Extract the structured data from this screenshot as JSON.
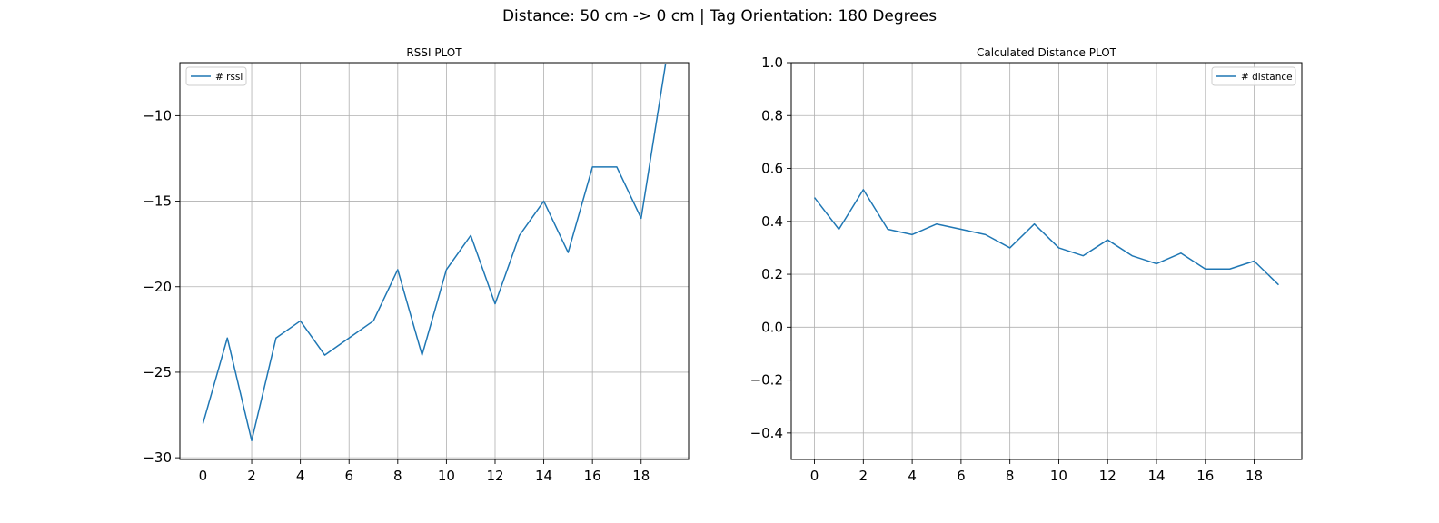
{
  "figure": {
    "suptitle": "Distance: 50 cm -> 0 cm | Tag Orientation: 180 Degrees",
    "line_color": "#1f77b4",
    "grid_color": "#b0b0b0"
  },
  "chart_data": [
    {
      "type": "line",
      "title": "RSSI PLOT",
      "xlabel": "",
      "ylabel": "",
      "grid": true,
      "legend_position": "upper left",
      "xlim": [
        -0.95,
        19.95
      ],
      "ylim": [
        -30.1,
        -6.9
      ],
      "xticks": [
        0,
        2,
        4,
        6,
        8,
        10,
        12,
        14,
        16,
        18
      ],
      "yticks": [
        -30,
        -25,
        -20,
        -15,
        -10
      ],
      "ytick_labels": [
        "−30",
        "−25",
        "−20",
        "−15",
        "−10"
      ],
      "series": [
        {
          "name": "# rssi",
          "x": [
            0,
            1,
            2,
            3,
            4,
            5,
            6,
            7,
            8,
            9,
            10,
            11,
            12,
            13,
            14,
            15,
            16,
            17,
            18,
            19
          ],
          "y": [
            -28,
            -23,
            -29,
            -23,
            -22,
            -24,
            -23,
            -22,
            -19,
            -24,
            -19,
            -17,
            -21,
            -17,
            -15,
            -18,
            -13,
            -13,
            -16,
            -7
          ]
        }
      ]
    },
    {
      "type": "line",
      "title": "Calculated Distance PLOT",
      "xlabel": "",
      "ylabel": "",
      "grid": true,
      "legend_position": "upper right",
      "xlim": [
        -0.95,
        19.95
      ],
      "ylim": [
        -0.5,
        1.0
      ],
      "xticks": [
        0,
        2,
        4,
        6,
        8,
        10,
        12,
        14,
        16,
        18
      ],
      "yticks": [
        -0.4,
        -0.2,
        0.0,
        0.2,
        0.4,
        0.6,
        0.8,
        1.0
      ],
      "ytick_labels": [
        "−0.4",
        "−0.2",
        "0.0",
        "0.2",
        "0.4",
        "0.6",
        "0.8",
        "1.0"
      ],
      "series": [
        {
          "name": "# distance",
          "x": [
            0,
            1,
            2,
            3,
            4,
            5,
            6,
            7,
            8,
            9,
            10,
            11,
            12,
            13,
            14,
            15,
            16,
            17,
            18,
            19
          ],
          "y": [
            0.49,
            0.37,
            0.52,
            0.37,
            0.35,
            0.39,
            0.37,
            0.35,
            0.3,
            0.39,
            0.3,
            0.27,
            0.33,
            0.27,
            0.24,
            0.28,
            0.22,
            0.22,
            0.25,
            0.16
          ]
        }
      ]
    }
  ]
}
